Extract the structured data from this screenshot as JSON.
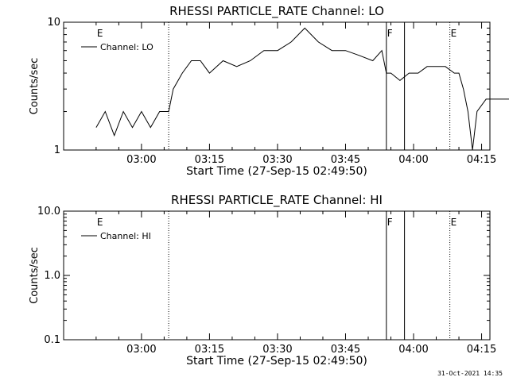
{
  "chart_data": [
    {
      "type": "line",
      "title": "RHESSI PARTICLE_RATE Channel: LO",
      "xlabel": "Start Time (27-Sep-15 02:49:50)",
      "ylabel": "Counts/sec",
      "yscale": "log",
      "ylim": [
        1,
        10
      ],
      "ytick_labels": [
        "1",
        "10"
      ],
      "xlim_minutes": [
        -7,
        87
      ],
      "xticks": [
        "03:00",
        "03:15",
        "03:30",
        "03:45",
        "04:00",
        "04:15"
      ],
      "grid": false,
      "legend": {
        "position": "top-left",
        "entries": [
          "Channel: LO"
        ]
      },
      "markers": [
        {
          "label": "E",
          "time": "02:50",
          "style": "none"
        },
        {
          "label": "",
          "time": "03:06",
          "style": "dotted"
        },
        {
          "label": "F",
          "time": "03:54",
          "style": "solid"
        },
        {
          "label": "",
          "time": "03:58",
          "style": "solid"
        },
        {
          "label": "E",
          "time": "04:08",
          "style": "dotted"
        },
        {
          "label": "",
          "time": "04:24",
          "style": "dotted"
        }
      ],
      "series": [
        {
          "name": "Channel: LO",
          "x": [
            "02:50",
            "02:52",
            "02:54",
            "02:56",
            "02:58",
            "03:00",
            "03:02",
            "03:04",
            "03:06",
            "03:07",
            "03:09",
            "03:11",
            "03:13",
            "03:15",
            "03:18",
            "03:21",
            "03:24",
            "03:27",
            "03:30",
            "03:33",
            "03:36",
            "03:39",
            "03:42",
            "03:45",
            "03:48",
            "03:51",
            "03:53",
            "03:54",
            "03:55",
            "03:57",
            "03:59",
            "04:01",
            "04:03",
            "04:05",
            "04:07",
            "04:09",
            "04:10",
            "04:11",
            "04:12",
            "04:13",
            "04:14",
            "04:16",
            "04:18",
            "04:20",
            "04:22",
            "04:24"
          ],
          "y": [
            1.5,
            2,
            1.3,
            2,
            1.5,
            2,
            1.5,
            2,
            2,
            3,
            4,
            5,
            5,
            4,
            5,
            4.5,
            5,
            6,
            6,
            7,
            9,
            7,
            6,
            6,
            5.5,
            5,
            6,
            4,
            4,
            3.5,
            4,
            4,
            4.5,
            4.5,
            4.5,
            4,
            4,
            3,
            2,
            1,
            2,
            2.5,
            2.5,
            2.5,
            2.5,
            2.5
          ]
        }
      ]
    },
    {
      "type": "line",
      "title": "RHESSI PARTICLE_RATE Channel: HI",
      "xlabel": "Start Time (27-Sep-15 02:49:50)",
      "ylabel": "Counts/sec",
      "yscale": "log",
      "ylim": [
        0.1,
        10
      ],
      "ytick_labels": [
        "0.1",
        "1.0",
        "10.0"
      ],
      "xlim_minutes": [
        -7,
        87
      ],
      "xticks": [
        "03:00",
        "03:15",
        "03:30",
        "03:45",
        "04:00",
        "04:15"
      ],
      "grid": false,
      "legend": {
        "position": "top-left",
        "entries": [
          "Channel: HI"
        ]
      },
      "markers": [
        {
          "label": "E",
          "time": "02:50",
          "style": "none"
        },
        {
          "label": "",
          "time": "03:06",
          "style": "dotted"
        },
        {
          "label": "F",
          "time": "03:54",
          "style": "solid"
        },
        {
          "label": "",
          "time": "03:58",
          "style": "solid"
        },
        {
          "label": "E",
          "time": "04:08",
          "style": "dotted"
        },
        {
          "label": "",
          "time": "04:24",
          "style": "dotted"
        }
      ],
      "series": [
        {
          "name": "Channel: HI",
          "x": [],
          "y": []
        }
      ]
    }
  ],
  "footer": {
    "timestamp": "31-Oct-2021 14:35"
  }
}
